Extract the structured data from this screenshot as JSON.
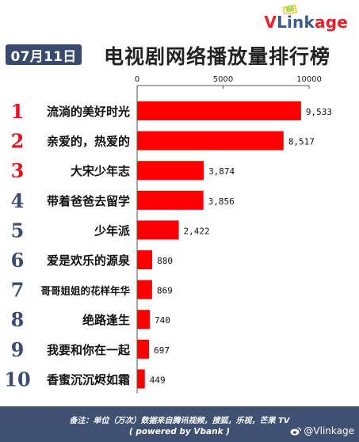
{
  "brand": {
    "logo_v": "V",
    "logo_link": "Link",
    "logo_age": "age"
  },
  "header": {
    "date": "07月11日",
    "title": "电视剧网络播放量排行榜"
  },
  "chart_data": {
    "type": "bar",
    "orientation": "horizontal",
    "title": "电视剧网络播放量排行榜",
    "unit": "万次",
    "xlim": [
      0,
      10000
    ],
    "x_ticks": [
      0,
      5000,
      10000
    ],
    "ranks": [
      "1",
      "2",
      "3",
      "4",
      "5",
      "6",
      "7",
      "8",
      "9",
      "10"
    ],
    "categories": [
      "流淌的美好时光",
      "亲爱的，热爱的",
      "大宋少年志",
      "带着爸爸去留学",
      "少年派",
      "爱是欢乐的源泉",
      "哥哥姐姐的花样年华",
      "绝路逢生",
      "我要和你在一起",
      "香蜜沉沉烬如霜"
    ],
    "values": [
      9533,
      8517,
      3874,
      3856,
      2422,
      880,
      869,
      740,
      697,
      449
    ],
    "value_labels": [
      "9,533",
      "8,517",
      "3,874",
      "3,856",
      "2,422",
      "880",
      "869",
      "740",
      "697",
      "449"
    ],
    "colors": {
      "bar": "#ff0000",
      "rank_top3": "#e8101e",
      "rank_rest": "#3c4d6f"
    }
  },
  "footer": {
    "note": "备注：单位（万次）数据来自腾讯视频，搜狐，乐视，芒果 TV",
    "powered": "( powered by Vbank )",
    "weibo_handle": "@Vlinkage"
  }
}
